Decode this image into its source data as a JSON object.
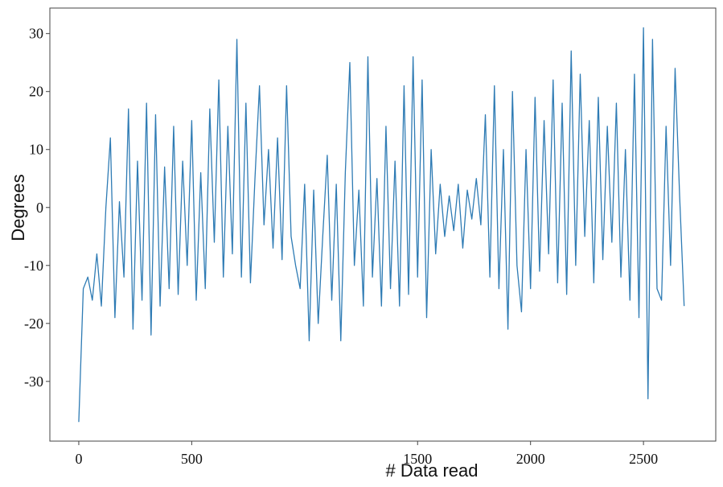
{
  "chart_data": {
    "type": "line",
    "xlabel": "# Data read",
    "ylabel": "Degrees",
    "x": [
      0,
      20,
      40,
      60,
      80,
      100,
      120,
      140,
      160,
      180,
      200,
      220,
      240,
      260,
      280,
      300,
      320,
      340,
      360,
      380,
      400,
      420,
      440,
      460,
      480,
      500,
      520,
      540,
      560,
      580,
      600,
      620,
      640,
      660,
      680,
      700,
      720,
      740,
      760,
      780,
      800,
      820,
      840,
      860,
      880,
      900,
      920,
      940,
      960,
      980,
      1000,
      1020,
      1040,
      1060,
      1080,
      1100,
      1120,
      1140,
      1160,
      1180,
      1200,
      1220,
      1240,
      1260,
      1280,
      1300,
      1320,
      1340,
      1360,
      1380,
      1400,
      1420,
      1440,
      1460,
      1480,
      1500,
      1520,
      1540,
      1560,
      1580,
      1600,
      1620,
      1640,
      1660,
      1680,
      1700,
      1720,
      1740,
      1760,
      1780,
      1800,
      1820,
      1840,
      1860,
      1880,
      1900,
      1920,
      1940,
      1960,
      1980,
      2000,
      2020,
      2040,
      2060,
      2080,
      2100,
      2120,
      2140,
      2160,
      2180,
      2200,
      2220,
      2240,
      2260,
      2280,
      2300,
      2320,
      2340,
      2360,
      2380,
      2400,
      2420,
      2440,
      2460,
      2480,
      2500,
      2520,
      2540,
      2560,
      2580,
      2600,
      2620,
      2640,
      2660,
      2680
    ],
    "series": [
      {
        "name": "Degrees",
        "color": "#2e7bb4",
        "values": [
          -37,
          -14,
          -12,
          -16,
          -8,
          -17,
          0,
          12,
          -19,
          1,
          -12,
          17,
          -21,
          8,
          -16,
          18,
          -22,
          16,
          -17,
          7,
          -14,
          14,
          -15,
          8,
          -10,
          15,
          -16,
          6,
          -14,
          17,
          -6,
          22,
          -12,
          14,
          -8,
          29,
          -12,
          18,
          -13,
          5,
          21,
          -3,
          10,
          -7,
          12,
          -9,
          21,
          -5,
          -10,
          -14,
          4,
          -23,
          3,
          -20,
          -5,
          9,
          -16,
          4,
          -23,
          6,
          25,
          -10,
          3,
          -17,
          26,
          -12,
          5,
          -17,
          14,
          -14,
          8,
          -17,
          21,
          -15,
          26,
          -12,
          22,
          -19,
          10,
          -8,
          4,
          -5,
          2,
          -4,
          4,
          -7,
          3,
          -2,
          5,
          -3,
          16,
          -12,
          21,
          -14,
          10,
          -21,
          20,
          -10,
          -18,
          10,
          -14,
          19,
          -11,
          15,
          -8,
          22,
          -13,
          18,
          -15,
          27,
          -10,
          23,
          -5,
          15,
          -13,
          19,
          -9,
          14,
          -6,
          18,
          -12,
          10,
          -16,
          23,
          -19,
          31,
          -33,
          29,
          -14,
          -16,
          14,
          -10,
          24,
          2,
          -17
        ]
      }
    ],
    "xlim": [
      -128,
      2820
    ],
    "xticks": [
      0,
      500,
      1500,
      2000,
      2500
    ],
    "ylim": [
      -40.3,
      34.4
    ],
    "yticks": [
      -30,
      -20,
      -10,
      0,
      10,
      20,
      30
    ],
    "grid": false
  }
}
